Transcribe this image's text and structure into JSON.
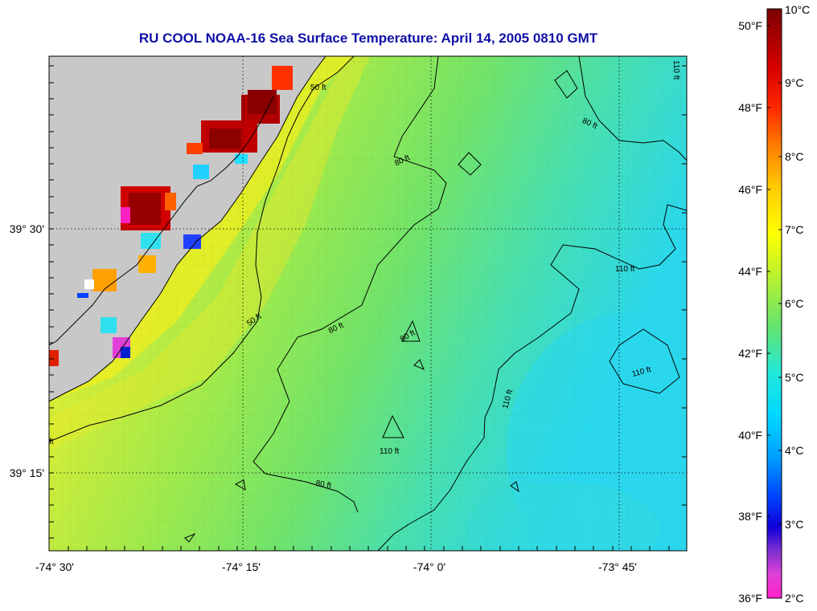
{
  "title": "RU COOL  NOAA-16  Sea Surface Temperature:  April 14, 2005 0810 GMT",
  "x_ticks": [
    "-74° 30'",
    "-74° 15'",
    "-74° 0'",
    "-73° 45'"
  ],
  "y_ticks": [
    "39° 30'",
    "39° 15'"
  ],
  "contour_labels": {
    "c50a": "50 ft",
    "c50b": "50 ft",
    "c80a": "80 ft",
    "c80b": "80 ft",
    "c80c": "80 ft",
    "c80d": "80 ft",
    "c80e": "80 ft",
    "c110a": "110 ft",
    "c110b": "110 ft",
    "c110c": "110 ft",
    "c110d": "110 ft",
    "c110e": "110 ft",
    "cft": "ft"
  },
  "colorbar": {
    "fahrenheit": [
      "50°F",
      "48°F",
      "46°F",
      "44°F",
      "42°F",
      "40°F",
      "38°F",
      "36°F"
    ],
    "celsius": [
      "10°C",
      "9°C",
      "8°C",
      "7°C",
      "6°C",
      "5°C",
      "4°C",
      "3°C",
      "2°C"
    ]
  },
  "colors": {
    "title": "#1010a8",
    "land": "#c8c8c8",
    "ocean_warm": "#e4ee30",
    "ocean_mid": "#7ae864",
    "ocean_cool": "#30dcee",
    "hot": "#a00000"
  }
}
